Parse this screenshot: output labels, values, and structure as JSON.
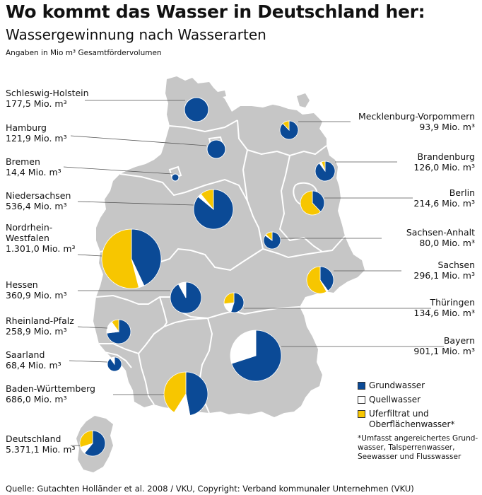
{
  "header": {
    "title": "Wo kommt das Wasser in Deutschland her:",
    "subtitle": "Wassergewinnung nach Wasserarten",
    "unit_note": "Angaben in Mio m³ Gesamtfördervolumen"
  },
  "colors": {
    "grundwasser": "#0b4a96",
    "quellwasser": "#ffffff",
    "uferfiltrat": "#f7c600",
    "land": "#c6c6c6",
    "border": "#ffffff"
  },
  "legend": {
    "items": [
      {
        "label": "Grundwasser",
        "color": "#0b4a96"
      },
      {
        "label": "Quellwasser",
        "color": "#ffffff"
      },
      {
        "label_line1": "Uferfiltrat und",
        "label_line2": "Oberflächenwasser*",
        "color": "#f7c600"
      }
    ],
    "footnote_lines": [
      "*Umfasst angereichertes Grund-",
      "wasser, Talsperrenwasser,",
      "Seewasser und Flusswasser"
    ]
  },
  "source": "Quelle: Gutachten Holländer et al. 2008 / VKU, Copyright: Verband kommunaler Unternehmen (VKU)",
  "states": [
    {
      "name": "Schleswig-Holstein",
      "value": "177,5 Mio. m³",
      "shares": [
        1.0,
        0.0,
        0.0
      ]
    },
    {
      "name": "Hamburg",
      "value": "121,9 Mio. m³",
      "shares": [
        1.0,
        0.0,
        0.0
      ]
    },
    {
      "name": "Bremen",
      "value": "14,4 Mio. m³",
      "shares": [
        1.0,
        0.0,
        0.0
      ]
    },
    {
      "name": "Niedersachsen",
      "value": "536,4 Mio. m³",
      "shares": [
        0.86,
        0.03,
        0.11
      ]
    },
    {
      "name_line1": "Nordrhein-",
      "name_line2": "Westfalen",
      "value": "1.301,0 Mio. m³",
      "shares": [
        0.43,
        0.03,
        0.54
      ]
    },
    {
      "name": "Hessen",
      "value": "360,9 Mio. m³",
      "shares": [
        0.92,
        0.08,
        0.0
      ]
    },
    {
      "name": "Rheinland-Pfalz",
      "value": "258,9 Mio. m³",
      "shares": [
        0.73,
        0.17,
        0.1
      ]
    },
    {
      "name": "Saarland",
      "value": "68,4 Mio. m³",
      "shares": [
        0.9,
        0.1,
        0.0
      ]
    },
    {
      "name": "Baden-Württemberg",
      "value": "686,0 Mio. m³",
      "shares": [
        0.47,
        0.12,
        0.41
      ]
    },
    {
      "name": "Mecklenburg-Vorpommern",
      "value": "93,9 Mio. m³",
      "shares": [
        0.88,
        0.0,
        0.12
      ]
    },
    {
      "name": "Brandenburg",
      "value": "126,0 Mio. m³",
      "shares": [
        0.9,
        0.04,
        0.06
      ]
    },
    {
      "name": "Berlin",
      "value": "214,6 Mio. m³",
      "shares": [
        0.38,
        0.0,
        0.62
      ]
    },
    {
      "name": "Sachsen-Anhalt",
      "value": "80,0 Mio. m³",
      "shares": [
        0.85,
        0.02,
        0.13
      ]
    },
    {
      "name": "Sachsen",
      "value": "296,1 Mio. m³",
      "shares": [
        0.4,
        0.02,
        0.58
      ]
    },
    {
      "name": "Thüringen",
      "value": "134,6 Mio. m³",
      "shares": [
        0.55,
        0.18,
        0.27
      ]
    },
    {
      "name": "Bayern",
      "value": "901,1 Mio. m³",
      "shares": [
        0.7,
        0.3,
        0.0
      ]
    },
    {
      "name": "Deutschland",
      "value": "5.371,1 Mio. m³",
      "shares": [
        0.61,
        0.09,
        0.3
      ]
    }
  ]
}
